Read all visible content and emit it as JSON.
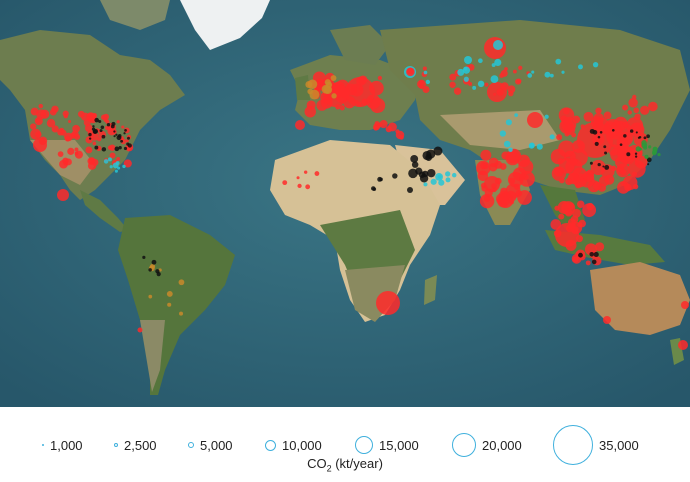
{
  "legend": {
    "title_main": "CO",
    "title_sub": "2",
    "title_unit": " (kt/year)",
    "stroke_color": "#3fb0dd",
    "items": [
      {
        "label": "1,000",
        "value": 1000
      },
      {
        "label": "2,500",
        "value": 2500
      },
      {
        "label": "5,000",
        "value": 5000
      },
      {
        "label": "10,000",
        "value": 10000
      },
      {
        "label": "15,000",
        "value": 15000
      },
      {
        "label": "20,000",
        "value": 20000
      },
      {
        "label": "35,000",
        "value": 35000
      }
    ]
  },
  "colors": {
    "ocean": "#2f6374",
    "land": "#6a7a4a",
    "desert": "#c9b38a",
    "ice": "#f2f4f5",
    "red_emitters": "#ff2a2a",
    "cyan_emitters": "#26c6d6",
    "black_emitters": "#111111",
    "orange_emitters": "#c98a2a",
    "green_emitters": "#2a9a3a"
  },
  "emitter_types": [
    "red",
    "cyan",
    "black",
    "orange",
    "green"
  ]
}
